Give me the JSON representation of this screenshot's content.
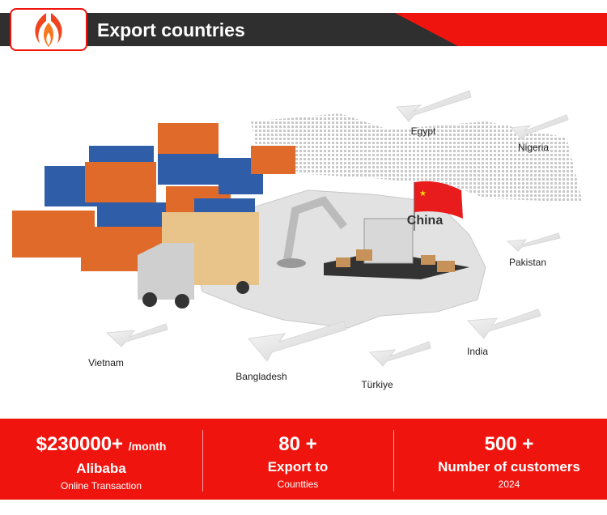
{
  "header": {
    "title": "Export countries"
  },
  "colors": {
    "accent": "#f0140e",
    "dark": "#2f2f2f"
  },
  "map": {
    "highlight": "China",
    "countries": [
      "Egypt",
      "Nigeria",
      "Pakistan",
      "India",
      "Türkiye",
      "Bangladesh",
      "Vietnam"
    ]
  },
  "stats": [
    {
      "value": "$230000+",
      "unit": "/month",
      "title": "Alibaba",
      "subtitle": "Online Transaction"
    },
    {
      "value": "80 +",
      "title": "Export to",
      "subtitle": "Countties"
    },
    {
      "value": "500 +",
      "title": "Number of customers",
      "subtitle": "2024"
    }
  ]
}
